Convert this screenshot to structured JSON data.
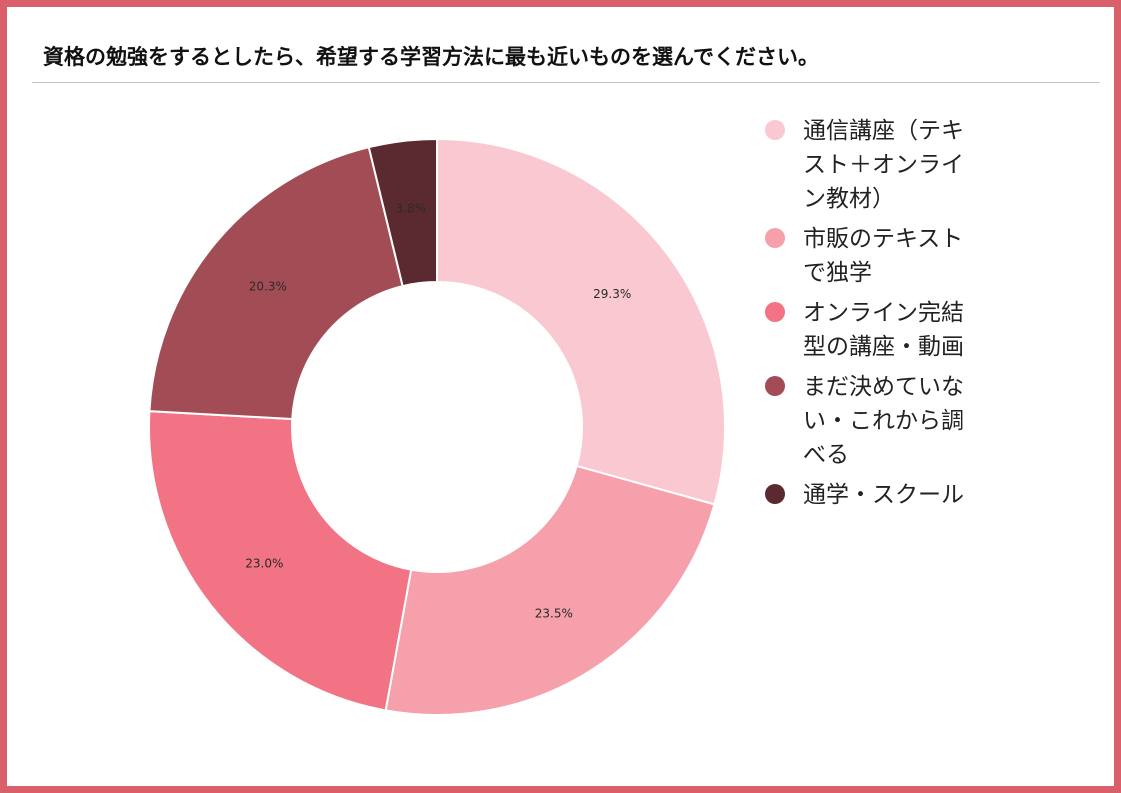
{
  "title": "資格の勉強をするとしたら、希望する学習方法に最も近いものを選んでください。",
  "colors": {
    "frame": "#d95f6a",
    "rule": "#c8c8c8"
  },
  "chart_data": {
    "type": "pie",
    "donut": true,
    "legend_position": "right",
    "slices": [
      {
        "label": "通信講座（テキスト＋オンライン教材）",
        "value": 29.3,
        "value_label": "29.3%",
        "color": "#f9c8d0"
      },
      {
        "label": "市販のテキストで独学",
        "value": 23.5,
        "value_label": "23.5%",
        "color": "#f5a0aa"
      },
      {
        "label": "オンライン完結型の講座・動画",
        "value": 23.0,
        "value_label": "23.0%",
        "color": "#f27383"
      },
      {
        "label": "まだ決めていない・これから調べる",
        "value": 20.3,
        "value_label": "20.3%",
        "color": "#a24d56"
      },
      {
        "label": "通学・スクール",
        "value": 3.8,
        "value_label": "3.8%",
        "color": "#5b2a30"
      }
    ]
  }
}
